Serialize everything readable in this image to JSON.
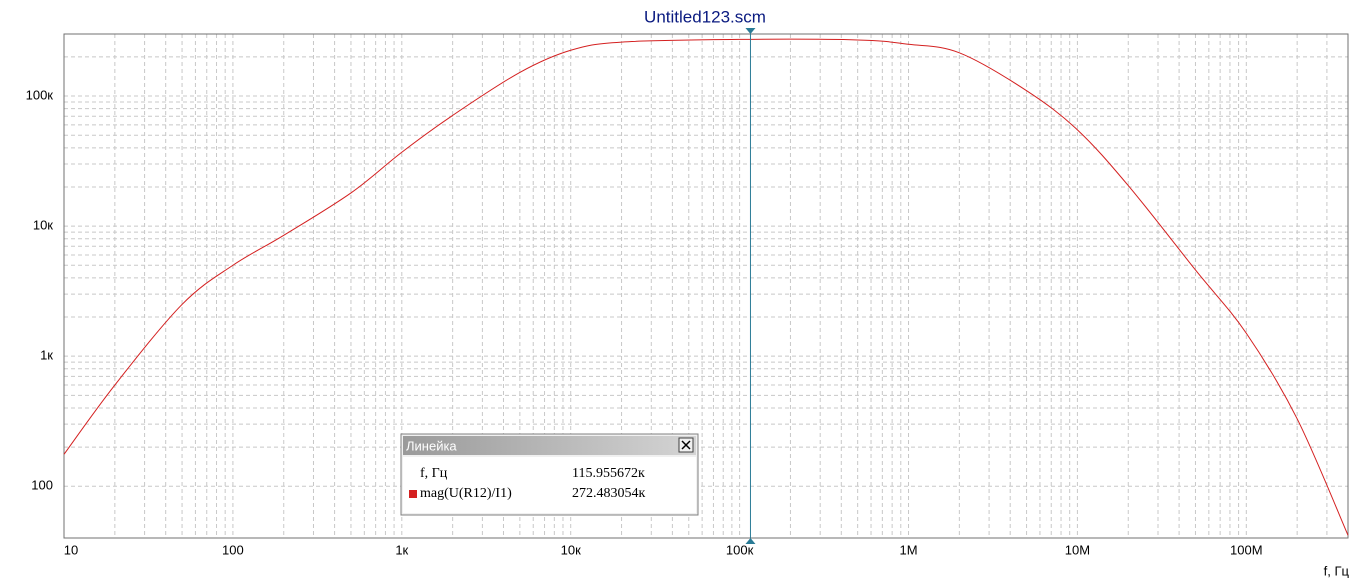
{
  "chart_data": {
    "type": "line",
    "title": "Untitled123.scm",
    "xlabel": "f, Гц",
    "log_x": true,
    "log_y": true,
    "grid": true,
    "minor_multiples": [
      2,
      3,
      4,
      5,
      6,
      7,
      8,
      9
    ],
    "xlim": [
      10,
      400000000
    ],
    "ylim": [
      40,
      300000
    ],
    "xticks": [
      10,
      100,
      {
        "value": 1000,
        "label": "1к"
      },
      {
        "value": 10000,
        "label": "10к"
      },
      {
        "value": 100000,
        "label": "100к"
      },
      {
        "value": 1000000,
        "label": "1M"
      },
      {
        "value": 10000000,
        "label": "10M"
      },
      {
        "value": 100000000,
        "label": "100M"
      }
    ],
    "yticks": [
      100,
      {
        "value": 1000,
        "label": "1к"
      },
      {
        "value": 10000,
        "label": "10к"
      },
      {
        "value": 100000,
        "label": "100к"
      }
    ],
    "x": [
      10,
      20,
      50,
      100,
      200,
      500,
      1000,
      2000,
      5000,
      10000,
      20000,
      100000,
      500000,
      1000000,
      2000000,
      5000000,
      10000000,
      20000000,
      50000000,
      100000000,
      200000000,
      400000000
    ],
    "series": [
      {
        "name": "mag(U(R12)/I1)",
        "color": "#d42020",
        "values": [
          176,
          600,
          2500,
          5000,
          8500,
          18000,
          37000,
          71000,
          152000,
          225000,
          260000,
          272483,
          270000,
          250000,
          215000,
          110000,
          55000,
          20500,
          4600,
          1500,
          330,
          42
        ]
      }
    ],
    "cursor": {
      "title": "Линейка",
      "color": "#2a7b96",
      "x": 115955.672,
      "x_label": "115.955672к",
      "y": 272483.054,
      "y_label": "272.483054к"
    }
  }
}
